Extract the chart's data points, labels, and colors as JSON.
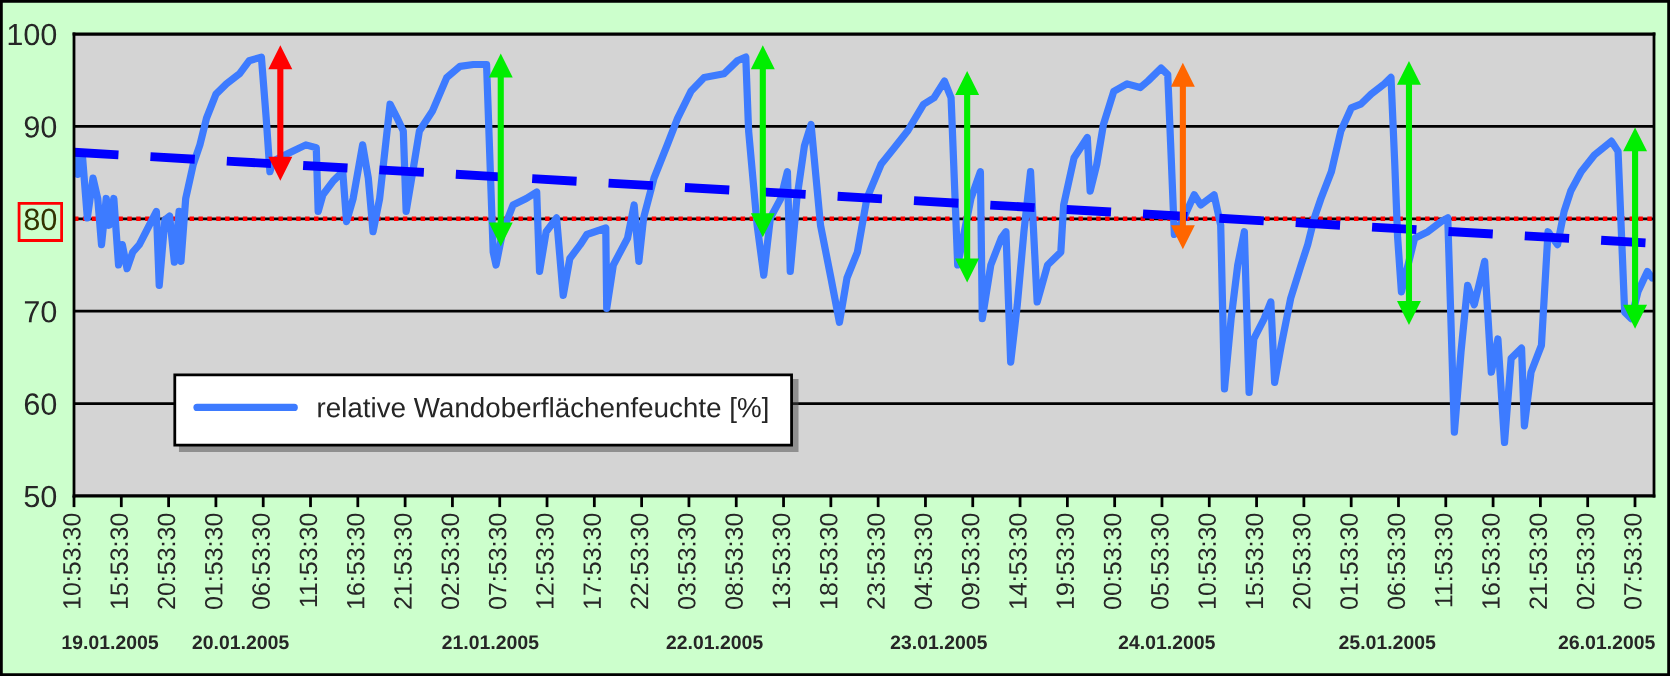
{
  "chart_data": {
    "type": "line",
    "xlim": [
      "2005-01-19T10:53:30",
      "2005-01-26T09:54"
    ],
    "xticks": [
      {
        "value": "2005-01-19T10:53:30",
        "label": "10:53:30"
      },
      {
        "value": "2005-01-19T15:53:30",
        "label": "15:53:30"
      },
      {
        "value": "2005-01-19T20:53:30",
        "label": "20:53:30"
      },
      {
        "value": "2005-01-20T01:53:30",
        "label": "01:53:30"
      },
      {
        "value": "2005-01-20T06:53:30",
        "label": "06:53:30"
      },
      {
        "value": "2005-01-20T11:53:30",
        "label": "11:53:30"
      },
      {
        "value": "2005-01-20T16:53:30",
        "label": "16:53:30"
      },
      {
        "value": "2005-01-20T21:53:30",
        "label": "21:53:30"
      },
      {
        "value": "2005-01-21T02:53:30",
        "label": "02:53:30"
      },
      {
        "value": "2005-01-21T07:53:30",
        "label": "07:53:30"
      },
      {
        "value": "2005-01-21T12:53:30",
        "label": "12:53:30"
      },
      {
        "value": "2005-01-21T17:53:30",
        "label": "17:53:30"
      },
      {
        "value": "2005-01-21T22:53:30",
        "label": "22:53:30"
      },
      {
        "value": "2005-01-22T03:53:30",
        "label": "03:53:30"
      },
      {
        "value": "2005-01-22T08:53:30",
        "label": "08:53:30"
      },
      {
        "value": "2005-01-22T13:53:30",
        "label": "13:53:30"
      },
      {
        "value": "2005-01-22T18:53:30",
        "label": "18:53:30"
      },
      {
        "value": "2005-01-22T23:53:30",
        "label": "23:53:30"
      },
      {
        "value": "2005-01-23T04:53:30",
        "label": "04:53:30"
      },
      {
        "value": "2005-01-23T09:53:30",
        "label": "09:53:30"
      },
      {
        "value": "2005-01-23T14:53:30",
        "label": "14:53:30"
      },
      {
        "value": "2005-01-23T19:53:30",
        "label": "19:53:30"
      },
      {
        "value": "2005-01-24T00:53:30",
        "label": "00:53:30"
      },
      {
        "value": "2005-01-24T05:53:30",
        "label": "05:53:30"
      },
      {
        "value": "2005-01-24T10:53:30",
        "label": "10:53:30"
      },
      {
        "value": "2005-01-24T15:53:30",
        "label": "15:53:30"
      },
      {
        "value": "2005-01-24T20:53:30",
        "label": "20:53:30"
      },
      {
        "value": "2005-01-25T01:53:30",
        "label": "01:53:30"
      },
      {
        "value": "2005-01-25T06:53:30",
        "label": "06:53:30"
      },
      {
        "value": "2005-01-25T11:53:30",
        "label": "11:53:30"
      },
      {
        "value": "2005-01-25T16:53:30",
        "label": "16:53:30"
      },
      {
        "value": "2005-01-25T21:53:30",
        "label": "21:53:30"
      },
      {
        "value": "2005-01-26T02:53:30",
        "label": "02:53:30"
      },
      {
        "value": "2005-01-26T07:53:30",
        "label": "07:53:30"
      }
    ],
    "x2lim": [
      "2005-01-19T10:53:30",
      "2005-01-26T09:54"
    ],
    "x2ticks": [
      {
        "value": "2005-01-19T14:42",
        "label": "19.01.2005"
      },
      {
        "value": "2005-01-20T04:30",
        "label": "20.01.2005"
      },
      {
        "value": "2005-01-21T06:54",
        "label": "21.01.2005"
      },
      {
        "value": "2005-01-22T06:36",
        "label": "22.01.2005"
      },
      {
        "value": "2005-01-23T06:18",
        "label": "23.01.2005"
      },
      {
        "value": "2005-01-24T06:24",
        "label": "24.01.2005"
      },
      {
        "value": "2005-01-25T05:42",
        "label": "25.01.2005"
      },
      {
        "value": "2005-01-26T04:54",
        "label": "26.01.2005"
      }
    ],
    "ylim": [
      50,
      100
    ],
    "yticks": [
      50,
      60,
      70,
      80,
      90,
      100
    ],
    "grid": "y",
    "legend": "bottom left",
    "ref_lines": [
      {
        "axis": "y",
        "value": 80,
        "color": "#ff0000",
        "line_style": "dotted"
      }
    ],
    "series": [
      {
        "name": "relative Wandoberflächenfeuchte [%]",
        "color": "#3d7bff",
        "line_style": "solid",
        "marker": "none",
        "x": [
          "2005-01-19T11:06",
          "2005-01-19T11:18",
          "2005-01-19T11:48",
          "2005-01-19T12:18",
          "2005-01-19T12:54",
          "2005-01-19T13:24",
          "2005-01-19T13:48",
          "2005-01-19T14:18",
          "2005-01-19T14:36",
          "2005-01-19T15:06",
          "2005-01-19T15:36",
          "2005-01-19T16:00",
          "2005-01-19T16:30",
          "2005-01-19T17:06",
          "2005-01-19T17:48",
          "2005-01-19T18:30",
          "2005-01-19T19:36",
          "2005-01-19T19:54",
          "2005-01-19T20:30",
          "2005-01-19T21:00",
          "2005-01-19T21:30",
          "2005-01-19T22:00",
          "2005-01-19T22:12",
          "2005-01-19T22:42",
          "2005-01-19T23:30",
          "2005-01-20T00:12",
          "2005-01-20T00:54",
          "2005-01-20T01:54",
          "2005-01-20T03:00",
          "2005-01-20T04:24",
          "2005-01-20T05:24",
          "2005-01-20T06:42",
          "2005-01-20T07:12",
          "2005-01-20T07:36",
          "2005-01-20T07:54",
          "2005-01-20T08:36",
          "2005-01-20T10:00",
          "2005-01-20T11:24",
          "2005-01-20T12:30",
          "2005-01-20T12:42",
          "2005-01-20T13:12",
          "2005-01-20T14:18",
          "2005-01-20T15:18",
          "2005-01-20T15:42",
          "2005-01-20T16:24",
          "2005-01-20T17:24",
          "2005-01-20T18:00",
          "2005-01-20T18:30",
          "2005-01-20T19:12",
          "2005-01-20T20:18",
          "2005-01-20T21:00",
          "2005-01-20T21:42",
          "2005-01-20T22:00",
          "2005-01-20T22:42",
          "2005-01-20T23:24",
          "2005-01-21T00:48",
          "2005-01-21T02:18",
          "2005-01-21T03:42",
          "2005-01-21T05:06",
          "2005-01-21T06:30",
          "2005-01-21T07:12",
          "2005-01-21T07:30",
          "2005-01-21T08:12",
          "2005-01-21T09:18",
          "2005-01-21T10:42",
          "2005-01-21T11:48",
          "2005-01-21T12:06",
          "2005-01-21T12:48",
          "2005-01-21T13:54",
          "2005-01-21T14:36",
          "2005-01-21T15:18",
          "2005-01-21T16:24",
          "2005-01-21T17:06",
          "2005-01-21T19:06",
          "2005-01-21T19:12",
          "2005-01-21T19:54",
          "2005-01-21T21:24",
          "2005-01-21T22:06",
          "2005-01-21T22:36",
          "2005-01-21T23:06",
          "2005-01-22T00:12",
          "2005-01-22T01:36",
          "2005-01-22T02:42",
          "2005-01-22T04:06",
          "2005-01-22T05:30",
          "2005-01-22T07:36",
          "2005-01-22T09:00",
          "2005-01-22T09:54",
          "2005-01-22T10:12",
          "2005-01-22T11:06",
          "2005-01-22T11:48",
          "2005-01-22T12:30",
          "2005-01-22T13:36",
          "2005-01-22T14:18",
          "2005-01-22T14:36",
          "2005-01-22T15:18",
          "2005-01-22T16:06",
          "2005-01-22T16:48",
          "2005-01-22T17:48",
          "2005-01-22T18:54",
          "2005-01-22T19:48",
          "2005-01-22T20:36",
          "2005-01-22T21:42",
          "2005-01-22T22:42",
          "2005-01-23T00:12",
          "2005-01-23T01:36",
          "2005-01-23T03:00",
          "2005-01-23T04:42",
          "2005-01-23T05:48",
          "2005-01-23T06:54",
          "2005-01-23T07:36",
          "2005-01-23T08:18",
          "2005-01-23T09:42",
          "2005-01-23T10:42",
          "2005-01-23T10:54",
          "2005-01-23T11:48",
          "2005-01-23T12:54",
          "2005-01-23T13:24",
          "2005-01-23T13:54",
          "2005-01-23T14:36",
          "2005-01-23T15:18",
          "2005-01-23T16:00",
          "2005-01-23T16:42",
          "2005-01-23T17:48",
          "2005-01-23T19:12",
          "2005-01-23T19:30",
          "2005-01-23T20:36",
          "2005-01-23T22:00",
          "2005-01-23T22:18",
          "2005-01-23T23:00",
          "2005-01-23T23:42",
          "2005-01-24T00:48",
          "2005-01-24T02:12",
          "2005-01-24T03:36",
          "2005-01-24T04:24",
          "2005-01-24T05:48",
          "2005-01-24T06:30",
          "2005-01-24T06:48",
          "2005-01-24T07:12",
          "2005-01-24T07:30",
          "2005-01-24T08:12",
          "2005-01-24T09:18",
          "2005-01-24T10:00",
          "2005-01-24T11:24",
          "2005-01-24T12:06",
          "2005-01-24T12:30",
          "2005-01-24T13:12",
          "2005-01-24T13:54",
          "2005-01-24T14:36",
          "2005-01-24T15:06",
          "2005-01-24T15:36",
          "2005-01-24T16:42",
          "2005-01-24T17:24",
          "2005-01-24T17:48",
          "2005-01-24T18:30",
          "2005-01-24T19:30",
          "2005-01-24T20:36",
          "2005-01-24T21:18",
          "2005-01-24T22:00",
          "2005-01-24T22:42",
          "2005-01-24T23:48",
          "2005-01-25T00:48",
          "2005-01-25T01:54",
          "2005-01-25T02:54",
          "2005-01-25T04:00",
          "2005-01-25T05:24",
          "2005-01-25T06:06",
          "2005-01-25T06:30",
          "2005-01-25T06:48",
          "2005-01-25T07:12",
          "2005-01-25T08:36",
          "2005-01-25T10:00",
          "2005-01-25T11:24",
          "2005-01-25T12:06",
          "2005-01-25T12:48",
          "2005-01-25T13:30",
          "2005-01-25T14:12",
          "2005-01-25T14:54",
          "2005-01-25T16:00",
          "2005-01-25T16:42",
          "2005-01-25T17:24",
          "2005-01-25T18:06",
          "2005-01-25T18:48",
          "2005-01-25T19:54",
          "2005-01-25T20:12",
          "2005-01-25T20:54",
          "2005-01-25T22:00",
          "2005-01-25T22:42",
          "2005-01-25T23:42",
          "2005-01-26T00:24",
          "2005-01-26T01:06",
          "2005-01-26T02:12",
          "2005-01-26T03:36",
          "2005-01-26T05:24",
          "2005-01-26T06:06",
          "2005-01-26T06:48",
          "2005-01-26T07:30",
          "2005-01-26T08:12",
          "2005-01-26T09:12",
          "2005-01-26T09:42"
        ],
        "values": [
          87.0,
          84.8,
          86.6,
          80.1,
          84.4,
          82.2,
          77.2,
          82.2,
          79.3,
          82.2,
          75.0,
          77.2,
          74.6,
          76.4,
          77.2,
          78.6,
          80.8,
          72.8,
          79.9,
          80.3,
          75.3,
          80.8,
          75.4,
          82.2,
          85.9,
          88.0,
          90.9,
          93.5,
          94.6,
          95.7,
          97.1,
          97.5,
          91.0,
          85.1,
          86.2,
          86.6,
          87.3,
          88.0,
          87.7,
          80.8,
          82.6,
          84.1,
          85.1,
          79.7,
          82.2,
          88.0,
          84.4,
          78.6,
          82.2,
          92.4,
          91.0,
          89.5,
          80.8,
          85.1,
          89.5,
          91.7,
          95.3,
          96.5,
          96.7,
          96.7,
          76.4,
          75.0,
          78.6,
          81.5,
          82.2,
          82.9,
          74.3,
          78.6,
          80.1,
          71.7,
          75.7,
          77.2,
          78.3,
          79.0,
          70.3,
          75.0,
          77.9,
          81.5,
          75.4,
          80.1,
          84.4,
          88.0,
          90.9,
          93.8,
          95.3,
          95.7,
          97.1,
          97.5,
          89.5,
          79.3,
          73.9,
          80.1,
          82.2,
          85.1,
          74.3,
          82.2,
          87.9,
          90.2,
          79.3,
          73.6,
          68.8,
          73.6,
          76.4,
          82.2,
          85.9,
          87.7,
          89.5,
          92.4,
          93.1,
          94.9,
          93.1,
          75.0,
          82.2,
          85.1,
          69.2,
          75.0,
          77.9,
          78.6,
          64.5,
          70.7,
          78.6,
          85.1,
          71.0,
          75.0,
          76.4,
          81.5,
          86.6,
          88.8,
          83.0,
          85.9,
          90.2,
          93.8,
          94.6,
          94.2,
          94.9,
          96.3,
          95.6,
          88.3,
          78.3,
          78.6,
          80.1,
          82.6,
          81.5,
          82.6,
          79.3,
          61.6,
          69.2,
          75.0,
          78.6,
          61.2,
          67.0,
          69.2,
          71.0,
          62.3,
          66.3,
          71.4,
          75.0,
          77.2,
          80.1,
          82.2,
          85.1,
          89.5,
          92.0,
          92.4,
          93.5,
          94.6,
          95.3,
          85.9,
          78.0,
          72.1,
          77.9,
          78.6,
          79.7,
          80.1,
          56.9,
          65.6,
          72.8,
          70.7,
          75.4,
          63.4,
          67.0,
          55.8,
          64.9,
          66.0,
          57.6,
          63.4,
          66.3,
          78.6,
          77.2,
          80.8,
          83.0,
          85.1,
          86.9,
          88.4,
          87.3,
          69.9,
          69.2,
          72.1,
          74.3,
          73.6
        ]
      },
      {
        "color": "#0000ff",
        "line_style": "dashed",
        "marker": "none",
        "x": [
          "2005-01-19T10:54",
          "2005-01-26T09:00"
        ],
        "values": [
          87.2,
          77.4
        ]
      },
      {
        "color": "#ff0000",
        "line_style": "solid",
        "marker": "triangle",
        "x": [
          "2005-01-20T08:42",
          "2005-01-20T08:42"
        ],
        "values": [
          97.4,
          85.5
        ]
      },
      {
        "color": "#00ee00",
        "line_style": "solid",
        "marker": "triangle",
        "x": [
          "2005-01-21T08:00",
          "2005-01-21T08:00"
        ],
        "values": [
          96.5,
          78.4
        ]
      },
      {
        "color": "#00ee00",
        "line_style": "solid",
        "marker": "triangle",
        "x": [
          "2005-01-22T11:42",
          "2005-01-22T11:42"
        ],
        "values": [
          97.4,
          79.4
        ]
      },
      {
        "color": "#00ee00",
        "line_style": "solid",
        "marker": "triangle",
        "x": [
          "2005-01-23T09:18",
          "2005-01-23T09:18"
        ],
        "values": [
          94.6,
          74.5
        ]
      },
      {
        "color": "#ff6600",
        "line_style": "solid",
        "marker": "triangle",
        "x": [
          "2005-01-24T08:06",
          "2005-01-24T08:06"
        ],
        "values": [
          95.5,
          78.1
        ]
      },
      {
        "color": "#00ee00",
        "line_style": "solid",
        "marker": "triangle",
        "x": [
          "2005-01-25T08:00",
          "2005-01-25T08:00"
        ],
        "values": [
          95.7,
          69.9
        ]
      },
      {
        "color": "#00ee00",
        "line_style": "solid",
        "marker": "triangle",
        "x": [
          "2005-01-26T07:54",
          "2005-01-26T07:54"
        ],
        "values": [
          88.5,
          69.5
        ]
      }
    ]
  }
}
